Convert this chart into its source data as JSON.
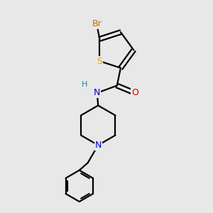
{
  "background_color": "#e8e8e8",
  "bond_color": "#000000",
  "atom_colors": {
    "Br": "#cc6600",
    "S": "#ccaa00",
    "N": "#0000cc",
    "O": "#cc0000",
    "C": "#000000",
    "H": "#228888"
  },
  "figsize": [
    3.0,
    3.0
  ],
  "dpi": 100,
  "xlim": [
    0,
    10
  ],
  "ylim": [
    0,
    10
  ]
}
